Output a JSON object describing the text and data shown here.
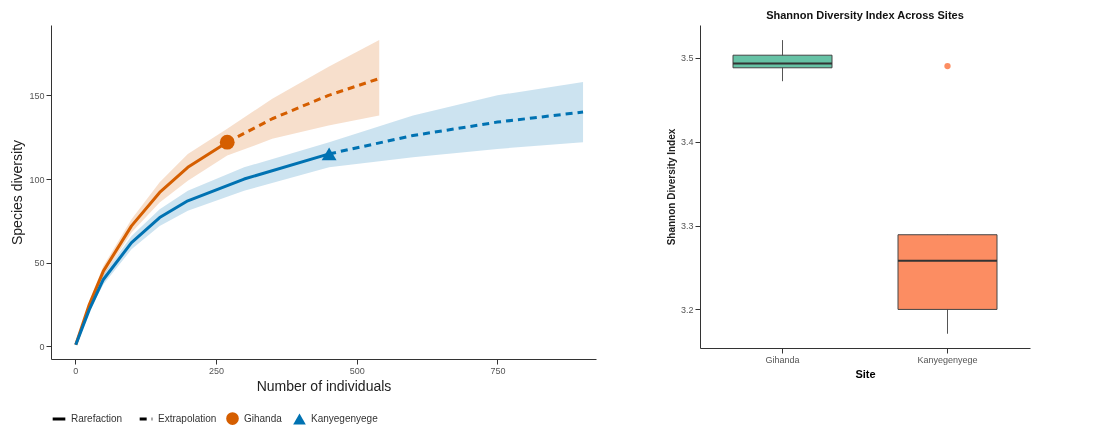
{
  "chart_data": [
    {
      "type": "line",
      "xlabel": "Number of individuals",
      "ylabel": "Species diversity",
      "xlim": [
        -43,
        925
      ],
      "ylim": [
        -7.5,
        192
      ],
      "xticks": [
        0,
        250,
        500,
        750
      ],
      "yticks": [
        0,
        50,
        100,
        150
      ],
      "grid": false,
      "legend": "bottom",
      "annotations": [
        "Rarefaction",
        "Extrapolation"
      ],
      "series": [
        {
          "color": "#d55e00",
          "line_style": "solid",
          "x": [
            1,
            25,
            50,
            100,
            150,
            200,
            270
          ],
          "values": [
            1,
            25,
            45,
            72,
            92,
            107,
            122
          ],
          "lower": [
            1,
            23,
            42,
            68,
            86,
            99,
            114
          ],
          "upper": [
            1,
            27,
            48,
            76,
            98,
            115,
            130
          ]
        },
        {
          "color": "#d55e00",
          "line_style": "dashed",
          "x": [
            270,
            350,
            450,
            540
          ],
          "values": [
            122,
            136,
            150,
            160
          ],
          "lower": [
            114,
            124,
            132,
            138
          ],
          "upper": [
            130,
            148,
            167,
            183
          ]
        },
        {
          "color": "#0072b2",
          "line_style": "solid",
          "x": [
            1,
            25,
            50,
            100,
            150,
            200,
            300,
            451
          ],
          "values": [
            1,
            22,
            40,
            62,
            77,
            87,
            100,
            115
          ],
          "lower": [
            1,
            21,
            37,
            58,
            72,
            81,
            93,
            107
          ],
          "upper": [
            1,
            23,
            43,
            66,
            82,
            93,
            107,
            122
          ]
        },
        {
          "color": "#0072b2",
          "line_style": "dashed",
          "x": [
            451,
            600,
            750,
            902
          ],
          "values": [
            115,
            126,
            134,
            140
          ],
          "lower": [
            107,
            113,
            118,
            122
          ],
          "upper": [
            122,
            138,
            150,
            158
          ]
        },
        {
          "type": "scatter",
          "name": "Gihanda",
          "color": "#d55e00",
          "marker": "circle",
          "x": [
            270
          ],
          "values": [
            122
          ]
        },
        {
          "type": "scatter",
          "name": "Kanyegenyege",
          "color": "#0072b2",
          "marker": "triangle",
          "x": [
            451
          ],
          "values": [
            115
          ]
        }
      ]
    },
    {
      "type": "box",
      "title": "Shannon Diversity Index Across Sites",
      "xlabel": "Site",
      "ylabel": "Shannon Diversity Index",
      "categories": [
        "Gihanda",
        "Kanyegenyege"
      ],
      "colors": [
        "#66c2a5",
        "#fc8d62"
      ],
      "ylim": [
        3.154,
        3.539
      ],
      "yticks": [
        3.2,
        3.3,
        3.4,
        3.5
      ],
      "grid": false,
      "boxes": [
        {
          "low": 3.472,
          "q1": 3.488,
          "median": 3.493,
          "q3": 3.503,
          "high": 3.521
        },
        {
          "low": 3.171,
          "q1": 3.2,
          "median": 3.258,
          "q3": 3.289,
          "high": 3.289,
          "outliers": [
            3.49
          ]
        }
      ]
    }
  ]
}
